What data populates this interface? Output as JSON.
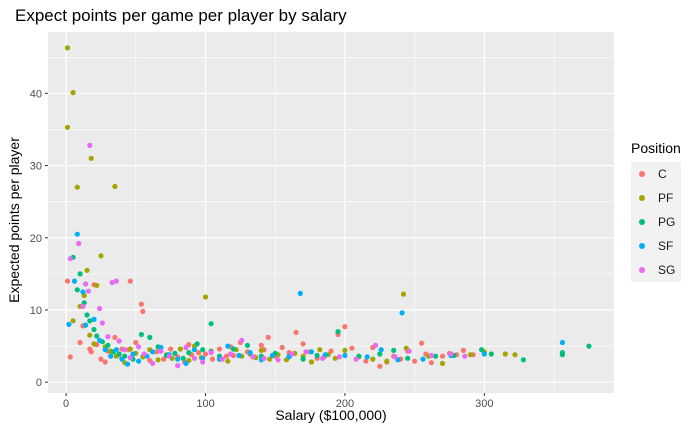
{
  "chart_data": {
    "type": "scatter",
    "title": "Expect points per game per player by salary",
    "xlabel": "Salary ($100,000)",
    "ylabel": "Expected points per player",
    "xlim": [
      -13,
      393
    ],
    "ylim": [
      -1.5,
      48.5
    ],
    "x_ticks": [
      0,
      100,
      200,
      300
    ],
    "y_ticks": [
      0,
      10,
      20,
      30,
      40
    ],
    "grid": true,
    "legend": {
      "title": "Position",
      "placement": "right"
    },
    "series": [
      {
        "name": "C",
        "color": "#F8766D",
        "points": [
          [
            1,
            14
          ],
          [
            17,
            4.6
          ],
          [
            3,
            3.5
          ],
          [
            12,
            7.8
          ],
          [
            10,
            5.5
          ],
          [
            18,
            4.2
          ],
          [
            20,
            13.5
          ],
          [
            25,
            3.2
          ],
          [
            22,
            5.2
          ],
          [
            28,
            2.8
          ],
          [
            30,
            4.3
          ],
          [
            35,
            6.2
          ],
          [
            38,
            3.8
          ],
          [
            40,
            4.6
          ],
          [
            46,
            14
          ],
          [
            50,
            5.5
          ],
          [
            54,
            10.8
          ],
          [
            55,
            9.8
          ],
          [
            45,
            4.5
          ],
          [
            60,
            3
          ],
          [
            65,
            4.2
          ],
          [
            70,
            3.2
          ],
          [
            75,
            4.6
          ],
          [
            80,
            3.5
          ],
          [
            85,
            2.8
          ],
          [
            88,
            5.2
          ],
          [
            90,
            3.8
          ],
          [
            95,
            4.1
          ],
          [
            100,
            3.9
          ],
          [
            105,
            3.2
          ],
          [
            110,
            4.6
          ],
          [
            115,
            3.6
          ],
          [
            118,
            4.9
          ],
          [
            120,
            3.7
          ],
          [
            125,
            5.5
          ],
          [
            130,
            4.2
          ],
          [
            135,
            3.5
          ],
          [
            140,
            5.1
          ],
          [
            142,
            4.5
          ],
          [
            145,
            6.2
          ],
          [
            150,
            3.6
          ],
          [
            155,
            4.8
          ],
          [
            160,
            4.1
          ],
          [
            165,
            6.9
          ],
          [
            170,
            5.3
          ],
          [
            175,
            4.2
          ],
          [
            180,
            3.3
          ],
          [
            185,
            3.5
          ],
          [
            190,
            4.3
          ],
          [
            195,
            6.6
          ],
          [
            200,
            7.7
          ],
          [
            205,
            4.7
          ],
          [
            210,
            3.5
          ],
          [
            215,
            2.9
          ],
          [
            220,
            4.8
          ],
          [
            225,
            2.2
          ],
          [
            230,
            2.8
          ],
          [
            235,
            3.6
          ],
          [
            240,
            3.2
          ],
          [
            245,
            4.3
          ],
          [
            250,
            2.9
          ],
          [
            255,
            5.4
          ],
          [
            258,
            3.9
          ],
          [
            262,
            2.7
          ],
          [
            270,
            3.6
          ],
          [
            275,
            4
          ],
          [
            280,
            3.8
          ],
          [
            285,
            4.4
          ],
          [
            292,
            3.8
          ]
        ]
      },
      {
        "name": "PF",
        "color": "#A3A500",
        "points": [
          [
            1,
            46.3
          ],
          [
            1,
            35.3
          ],
          [
            5,
            40.1
          ],
          [
            8,
            27
          ],
          [
            18,
            31
          ],
          [
            35,
            27.1
          ],
          [
            25,
            17.5
          ],
          [
            15,
            15.5
          ],
          [
            13,
            12
          ],
          [
            22,
            13.4
          ],
          [
            10,
            10.5
          ],
          [
            5,
            8.5
          ],
          [
            17,
            6.5
          ],
          [
            20,
            5.3
          ],
          [
            28,
            4.9
          ],
          [
            32,
            4.3
          ],
          [
            36,
            3.6
          ],
          [
            42,
            2.7
          ],
          [
            46,
            4.6
          ],
          [
            50,
            4
          ],
          [
            55,
            3.5
          ],
          [
            60,
            4.5
          ],
          [
            66,
            3.1
          ],
          [
            72,
            3.8
          ],
          [
            76,
            3.3
          ],
          [
            82,
            4.6
          ],
          [
            88,
            3
          ],
          [
            92,
            5
          ],
          [
            97,
            3.4
          ],
          [
            100,
            11.8
          ],
          [
            104,
            4.3
          ],
          [
            110,
            3.2
          ],
          [
            116,
            2.9
          ],
          [
            122,
            4.5
          ],
          [
            126,
            3.6
          ],
          [
            132,
            3.9
          ],
          [
            136,
            3.4
          ],
          [
            140,
            4.4
          ],
          [
            146,
            3.2
          ],
          [
            152,
            3.8
          ],
          [
            158,
            3.1
          ],
          [
            164,
            4
          ],
          [
            170,
            3.6
          ],
          [
            176,
            2.8
          ],
          [
            182,
            4.5
          ],
          [
            188,
            3.8
          ],
          [
            193,
            3.3
          ],
          [
            200,
            4.4
          ],
          [
            210,
            3.6
          ],
          [
            220,
            3.2
          ],
          [
            230,
            2.9
          ],
          [
            242,
            12.2
          ],
          [
            244,
            4.7
          ],
          [
            260,
            3.6
          ],
          [
            270,
            2.6
          ],
          [
            290,
            3.8
          ],
          [
            300,
            4.2
          ],
          [
            315,
            3.9
          ],
          [
            322,
            3.8
          ]
        ]
      },
      {
        "name": "PG",
        "color": "#00BF7D",
        "points": [
          [
            5,
            17.3
          ],
          [
            10,
            15
          ],
          [
            8,
            12.8
          ],
          [
            13,
            11
          ],
          [
            15,
            9.3
          ],
          [
            17,
            8.5
          ],
          [
            20,
            7.3
          ],
          [
            22,
            6.4
          ],
          [
            26,
            5.6
          ],
          [
            30,
            5.1
          ],
          [
            34,
            4.2
          ],
          [
            38,
            3.9
          ],
          [
            42,
            3.6
          ],
          [
            48,
            3.2
          ],
          [
            54,
            6.6
          ],
          [
            60,
            6.2
          ],
          [
            66,
            4.9
          ],
          [
            72,
            3.7
          ],
          [
            78,
            4
          ],
          [
            84,
            3.3
          ],
          [
            88,
            4.1
          ],
          [
            94,
            5.3
          ],
          [
            98,
            4.5
          ],
          [
            104,
            8.1
          ],
          [
            110,
            3.6
          ],
          [
            120,
            4.6
          ],
          [
            130,
            5.1
          ],
          [
            140,
            3.6
          ],
          [
            150,
            4
          ],
          [
            160,
            3.6
          ],
          [
            170,
            3.2
          ],
          [
            180,
            3.7
          ],
          [
            195,
            7
          ],
          [
            210,
            3.6
          ],
          [
            225,
            3.9
          ],
          [
            235,
            4.4
          ],
          [
            245,
            3.3
          ],
          [
            265,
            3.6
          ],
          [
            278,
            3.7
          ],
          [
            298,
            4.5
          ],
          [
            305,
            3.9
          ],
          [
            328,
            3.1
          ],
          [
            356,
            3.8
          ],
          [
            356,
            4.1
          ],
          [
            375,
            5
          ]
        ]
      },
      {
        "name": "SF",
        "color": "#00B0F6",
        "points": [
          [
            2,
            8
          ],
          [
            8,
            20.5
          ],
          [
            6,
            14
          ],
          [
            12,
            12.5
          ],
          [
            14,
            7.9
          ],
          [
            20,
            8.7
          ],
          [
            24,
            5.8
          ],
          [
            28,
            4.5
          ],
          [
            32,
            3.6
          ],
          [
            36,
            4.5
          ],
          [
            40,
            3.2
          ],
          [
            44,
            2.5
          ],
          [
            48,
            3.9
          ],
          [
            52,
            2.9
          ],
          [
            58,
            3.6
          ],
          [
            62,
            4.2
          ],
          [
            68,
            4.8
          ],
          [
            74,
            3.8
          ],
          [
            80,
            3.2
          ],
          [
            86,
            2.6
          ],
          [
            92,
            4.5
          ],
          [
            98,
            3.3
          ],
          [
            104,
            4.2
          ],
          [
            110,
            3.2
          ],
          [
            116,
            5
          ],
          [
            124,
            3.7
          ],
          [
            132,
            4.1
          ],
          [
            140,
            3.1
          ],
          [
            148,
            3.7
          ],
          [
            160,
            3.5
          ],
          [
            168,
            12.3
          ],
          [
            176,
            4.2
          ],
          [
            186,
            3.8
          ],
          [
            200,
            3.7
          ],
          [
            216,
            3.5
          ],
          [
            226,
            4.5
          ],
          [
            238,
            3.1
          ],
          [
            241,
            9.6
          ],
          [
            256,
            3.2
          ],
          [
            276,
            3.7
          ],
          [
            300,
            3.9
          ],
          [
            356,
            5.5
          ]
        ]
      },
      {
        "name": "SG",
        "color": "#E76BF3",
        "points": [
          [
            3,
            17.1
          ],
          [
            17,
            32.8
          ],
          [
            9,
            19.2
          ],
          [
            14,
            13.6
          ],
          [
            16,
            12.6
          ],
          [
            12,
            10.5
          ],
          [
            24,
            10.2
          ],
          [
            26,
            8.2
          ],
          [
            30,
            6.3
          ],
          [
            33,
            13.8
          ],
          [
            36,
            14
          ],
          [
            38,
            5.7
          ],
          [
            42,
            4.5
          ],
          [
            46,
            3.4
          ],
          [
            52,
            4.9
          ],
          [
            56,
            3.9
          ],
          [
            62,
            2.6
          ],
          [
            68,
            4.3
          ],
          [
            74,
            3.6
          ],
          [
            80,
            2.3
          ],
          [
            86,
            4.8
          ],
          [
            92,
            3.3
          ],
          [
            98,
            2.8
          ],
          [
            104,
            4.1
          ],
          [
            112,
            3.2
          ],
          [
            118,
            3.9
          ],
          [
            126,
            5.8
          ],
          [
            134,
            3.5
          ],
          [
            142,
            3.3
          ],
          [
            152,
            3.1
          ],
          [
            162,
            3.9
          ],
          [
            172,
            4.2
          ],
          [
            184,
            3.3
          ],
          [
            196,
            3.5
          ],
          [
            208,
            3.2
          ],
          [
            222,
            5.1
          ],
          [
            236,
            3.5
          ],
          [
            246,
            4.3
          ],
          [
            262,
            3.7
          ],
          [
            276,
            3.9
          ],
          [
            286,
            3.6
          ]
        ]
      }
    ]
  }
}
